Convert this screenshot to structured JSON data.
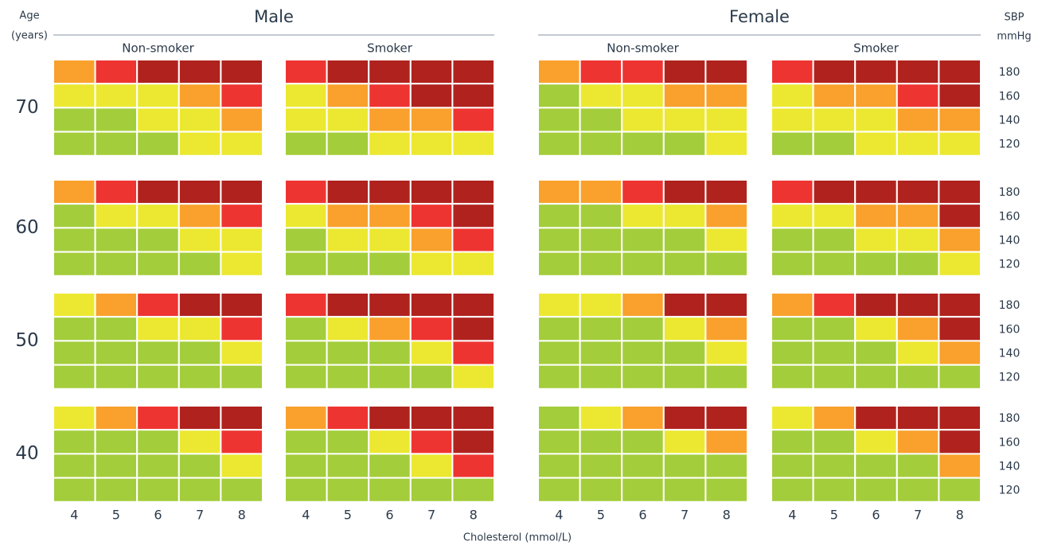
{
  "chart_data": {
    "type": "risk-grid",
    "age_title": "Age",
    "age_unit": "(years)",
    "sbp_title": "SBP",
    "sbp_unit": "mmHg",
    "x_label": "Cholesterol (mmol/L)",
    "cholesterol": [
      4,
      5,
      6,
      7,
      8
    ],
    "sbp": [
      180,
      160,
      140,
      120
    ],
    "sexes": [
      {
        "name": "Male",
        "groups": [
          "Non-smoker",
          "Smoker"
        ]
      },
      {
        "name": "Female",
        "groups": [
          "Non-smoker",
          "Smoker"
        ]
      }
    ],
    "ages": [
      {
        "age": 70,
        "panels": [
          [
            [
              "#f9a12c",
              "#ee3431",
              "#b0221e",
              "#b0221e",
              "#b0221e"
            ],
            [
              "#ece831",
              "#ece831",
              "#ece831",
              "#f9a12c",
              "#ee3431"
            ],
            [
              "#a3cd3b",
              "#a3cd3b",
              "#ece831",
              "#ece831",
              "#f9a12c"
            ],
            [
              "#a3cd3b",
              "#a3cd3b",
              "#a3cd3b",
              "#ece831",
              "#ece831"
            ]
          ],
          [
            [
              "#ee3431",
              "#b0221e",
              "#b0221e",
              "#b0221e",
              "#b0221e"
            ],
            [
              "#ece831",
              "#f9a12c",
              "#ee3431",
              "#b0221e",
              "#b0221e"
            ],
            [
              "#ece831",
              "#ece831",
              "#f9a12c",
              "#f9a12c",
              "#ee3431"
            ],
            [
              "#a3cd3b",
              "#a3cd3b",
              "#ece831",
              "#ece831",
              "#ece831"
            ]
          ],
          [
            [
              "#f9a12c",
              "#ee3431",
              "#ee3431",
              "#b0221e",
              "#b0221e"
            ],
            [
              "#a3cd3b",
              "#ece831",
              "#ece831",
              "#f9a12c",
              "#f9a12c"
            ],
            [
              "#a3cd3b",
              "#a3cd3b",
              "#ece831",
              "#ece831",
              "#ece831"
            ],
            [
              "#a3cd3b",
              "#a3cd3b",
              "#a3cd3b",
              "#a3cd3b",
              "#ece831"
            ]
          ],
          [
            [
              "#ee3431",
              "#b0221e",
              "#b0221e",
              "#b0221e",
              "#b0221e"
            ],
            [
              "#ece831",
              "#f9a12c",
              "#f9a12c",
              "#ee3431",
              "#b0221e"
            ],
            [
              "#ece831",
              "#ece831",
              "#ece831",
              "#f9a12c",
              "#f9a12c"
            ],
            [
              "#a3cd3b",
              "#a3cd3b",
              "#ece831",
              "#ece831",
              "#ece831"
            ]
          ]
        ]
      },
      {
        "age": 60,
        "panels": [
          [
            [
              "#f9a12c",
              "#ee3431",
              "#b0221e",
              "#b0221e",
              "#b0221e"
            ],
            [
              "#a3cd3b",
              "#ece831",
              "#ece831",
              "#f9a12c",
              "#ee3431"
            ],
            [
              "#a3cd3b",
              "#a3cd3b",
              "#a3cd3b",
              "#ece831",
              "#ece831"
            ],
            [
              "#a3cd3b",
              "#a3cd3b",
              "#a3cd3b",
              "#a3cd3b",
              "#ece831"
            ]
          ],
          [
            [
              "#ee3431",
              "#b0221e",
              "#b0221e",
              "#b0221e",
              "#b0221e"
            ],
            [
              "#ece831",
              "#f9a12c",
              "#f9a12c",
              "#ee3431",
              "#b0221e"
            ],
            [
              "#a3cd3b",
              "#ece831",
              "#ece831",
              "#f9a12c",
              "#ee3431"
            ],
            [
              "#a3cd3b",
              "#a3cd3b",
              "#a3cd3b",
              "#ece831",
              "#ece831"
            ]
          ],
          [
            [
              "#f9a12c",
              "#f9a12c",
              "#ee3431",
              "#b0221e",
              "#b0221e"
            ],
            [
              "#a3cd3b",
              "#a3cd3b",
              "#ece831",
              "#ece831",
              "#f9a12c"
            ],
            [
              "#a3cd3b",
              "#a3cd3b",
              "#a3cd3b",
              "#a3cd3b",
              "#ece831"
            ],
            [
              "#a3cd3b",
              "#a3cd3b",
              "#a3cd3b",
              "#a3cd3b",
              "#a3cd3b"
            ]
          ],
          [
            [
              "#ee3431",
              "#b0221e",
              "#b0221e",
              "#b0221e",
              "#b0221e"
            ],
            [
              "#ece831",
              "#ece831",
              "#f9a12c",
              "#f9a12c",
              "#b0221e"
            ],
            [
              "#a3cd3b",
              "#a3cd3b",
              "#ece831",
              "#ece831",
              "#f9a12c"
            ],
            [
              "#a3cd3b",
              "#a3cd3b",
              "#a3cd3b",
              "#a3cd3b",
              "#ece831"
            ]
          ]
        ]
      },
      {
        "age": 50,
        "panels": [
          [
            [
              "#ece831",
              "#f9a12c",
              "#ee3431",
              "#b0221e",
              "#b0221e"
            ],
            [
              "#a3cd3b",
              "#a3cd3b",
              "#ece831",
              "#ece831",
              "#ee3431"
            ],
            [
              "#a3cd3b",
              "#a3cd3b",
              "#a3cd3b",
              "#a3cd3b",
              "#ece831"
            ],
            [
              "#a3cd3b",
              "#a3cd3b",
              "#a3cd3b",
              "#a3cd3b",
              "#a3cd3b"
            ]
          ],
          [
            [
              "#ee3431",
              "#b0221e",
              "#b0221e",
              "#b0221e",
              "#b0221e"
            ],
            [
              "#a3cd3b",
              "#ece831",
              "#f9a12c",
              "#ee3431",
              "#b0221e"
            ],
            [
              "#a3cd3b",
              "#a3cd3b",
              "#a3cd3b",
              "#ece831",
              "#ee3431"
            ],
            [
              "#a3cd3b",
              "#a3cd3b",
              "#a3cd3b",
              "#a3cd3b",
              "#ece831"
            ]
          ],
          [
            [
              "#ece831",
              "#ece831",
              "#f9a12c",
              "#b0221e",
              "#b0221e"
            ],
            [
              "#a3cd3b",
              "#a3cd3b",
              "#a3cd3b",
              "#ece831",
              "#f9a12c"
            ],
            [
              "#a3cd3b",
              "#a3cd3b",
              "#a3cd3b",
              "#a3cd3b",
              "#ece831"
            ],
            [
              "#a3cd3b",
              "#a3cd3b",
              "#a3cd3b",
              "#a3cd3b",
              "#a3cd3b"
            ]
          ],
          [
            [
              "#f9a12c",
              "#ee3431",
              "#b0221e",
              "#b0221e",
              "#b0221e"
            ],
            [
              "#a3cd3b",
              "#a3cd3b",
              "#ece831",
              "#f9a12c",
              "#b0221e"
            ],
            [
              "#a3cd3b",
              "#a3cd3b",
              "#a3cd3b",
              "#ece831",
              "#f9a12c"
            ],
            [
              "#a3cd3b",
              "#a3cd3b",
              "#a3cd3b",
              "#a3cd3b",
              "#a3cd3b"
            ]
          ]
        ]
      },
      {
        "age": 40,
        "panels": [
          [
            [
              "#ece831",
              "#f9a12c",
              "#ee3431",
              "#b0221e",
              "#b0221e"
            ],
            [
              "#a3cd3b",
              "#a3cd3b",
              "#a3cd3b",
              "#ece831",
              "#ee3431"
            ],
            [
              "#a3cd3b",
              "#a3cd3b",
              "#a3cd3b",
              "#a3cd3b",
              "#ece831"
            ],
            [
              "#a3cd3b",
              "#a3cd3b",
              "#a3cd3b",
              "#a3cd3b",
              "#a3cd3b"
            ]
          ],
          [
            [
              "#f9a12c",
              "#ee3431",
              "#b0221e",
              "#b0221e",
              "#b0221e"
            ],
            [
              "#a3cd3b",
              "#a3cd3b",
              "#ece831",
              "#ee3431",
              "#b0221e"
            ],
            [
              "#a3cd3b",
              "#a3cd3b",
              "#a3cd3b",
              "#ece831",
              "#ee3431"
            ],
            [
              "#a3cd3b",
              "#a3cd3b",
              "#a3cd3b",
              "#a3cd3b",
              "#a3cd3b"
            ]
          ],
          [
            [
              "#a3cd3b",
              "#ece831",
              "#f9a12c",
              "#b0221e",
              "#b0221e"
            ],
            [
              "#a3cd3b",
              "#a3cd3b",
              "#a3cd3b",
              "#ece831",
              "#f9a12c"
            ],
            [
              "#a3cd3b",
              "#a3cd3b",
              "#a3cd3b",
              "#a3cd3b",
              "#a3cd3b"
            ],
            [
              "#a3cd3b",
              "#a3cd3b",
              "#a3cd3b",
              "#a3cd3b",
              "#a3cd3b"
            ]
          ],
          [
            [
              "#ece831",
              "#f9a12c",
              "#b0221e",
              "#b0221e",
              "#b0221e"
            ],
            [
              "#a3cd3b",
              "#a3cd3b",
              "#ece831",
              "#f9a12c",
              "#b0221e"
            ],
            [
              "#a3cd3b",
              "#a3cd3b",
              "#a3cd3b",
              "#a3cd3b",
              "#f9a12c"
            ],
            [
              "#a3cd3b",
              "#a3cd3b",
              "#a3cd3b",
              "#a3cd3b",
              "#a3cd3b"
            ]
          ]
        ]
      }
    ]
  }
}
